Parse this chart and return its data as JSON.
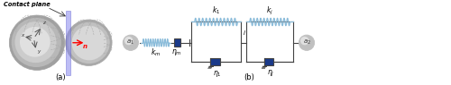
{
  "fig_width": 5.0,
  "fig_height": 0.95,
  "dpi": 100,
  "bg_color": "#ffffff",
  "label_a": "(a)",
  "label_b": "(b)",
  "contact_plane_label": "Contact plane",
  "node_a1_label": "$a_1$",
  "node_a2_label": "$a_2$",
  "node_i_label": "$i$",
  "km_label": "$k_m$",
  "etam_label": "$\\eta_m$",
  "k1_label": "$k_1$",
  "eta1_label": "$\\eta_1$",
  "kj_label": "$k_j$",
  "etaj_label": "$\\eta_j$",
  "spring_color": "#8bbcda",
  "dashpot_color": "#1a3a8a",
  "line_color": "#444444",
  "node_color_outer": "#b0b0b0",
  "node_color_inner": "#d8d8d8",
  "text_color": "#000000",
  "arrow_color": "#cc0000",
  "coord_color": "#555555",
  "plane_color": "#7777ee"
}
